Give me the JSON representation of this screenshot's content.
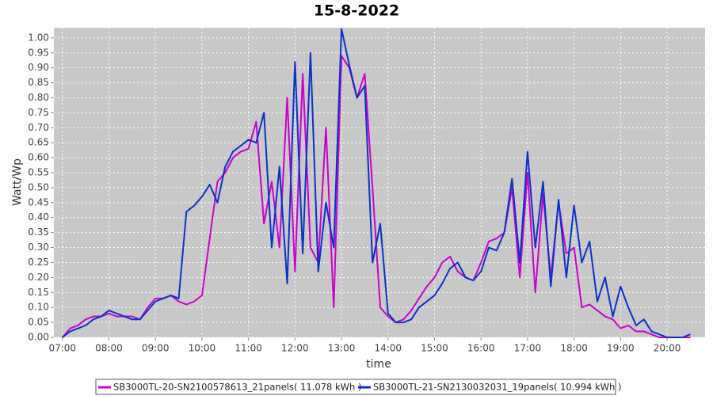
{
  "chart_data": {
    "type": "line",
    "title": "15-8-2022",
    "x_label": "time",
    "y_label": "Watt/Wp",
    "x": [
      420,
      430,
      440,
      450,
      460,
      470,
      480,
      490,
      500,
      510,
      520,
      530,
      540,
      550,
      560,
      570,
      580,
      590,
      600,
      610,
      620,
      630,
      640,
      650,
      660,
      670,
      680,
      690,
      700,
      710,
      720,
      730,
      740,
      750,
      760,
      770,
      780,
      790,
      800,
      810,
      820,
      830,
      840,
      850,
      860,
      870,
      880,
      890,
      900,
      910,
      920,
      930,
      940,
      950,
      960,
      970,
      980,
      990,
      1000,
      1010,
      1020,
      1030,
      1040,
      1050,
      1060,
      1070,
      1080,
      1090,
      1100,
      1110,
      1120,
      1130,
      1140,
      1150,
      1160,
      1170,
      1180,
      1190,
      1200,
      1210,
      1220,
      1230
    ],
    "series": [
      {
        "name": "SB3000TL-20-SN2100578613_21panels( 11.078 kWh )",
        "color": "#cc00cc",
        "values": [
          0.0,
          0.03,
          0.04,
          0.06,
          0.07,
          0.07,
          0.08,
          0.07,
          0.07,
          0.07,
          0.06,
          0.1,
          0.13,
          0.13,
          0.14,
          0.12,
          0.11,
          0.12,
          0.14,
          0.33,
          0.52,
          0.55,
          0.6,
          0.62,
          0.63,
          0.72,
          0.38,
          0.52,
          0.3,
          0.8,
          0.22,
          0.88,
          0.3,
          0.25,
          0.7,
          0.1,
          0.94,
          0.9,
          0.8,
          0.88,
          0.5,
          0.1,
          0.07,
          0.05,
          0.06,
          0.09,
          0.13,
          0.17,
          0.2,
          0.25,
          0.27,
          0.22,
          0.2,
          0.19,
          0.25,
          0.32,
          0.33,
          0.35,
          0.5,
          0.2,
          0.55,
          0.15,
          0.48,
          0.2,
          0.45,
          0.28,
          0.3,
          0.1,
          0.11,
          0.09,
          0.07,
          0.06,
          0.03,
          0.04,
          0.02,
          0.02,
          0.01,
          0.0,
          0.0,
          0.0,
          0.0,
          0.0
        ]
      },
      {
        "name": "SB3000TL-21-SN2130032031_19panels( 10.994 kWh )",
        "color": "#0a32c8",
        "values": [
          0.0,
          0.02,
          0.03,
          0.04,
          0.06,
          0.07,
          0.09,
          0.08,
          0.07,
          0.06,
          0.06,
          0.09,
          0.12,
          0.13,
          0.14,
          0.13,
          0.42,
          0.44,
          0.47,
          0.51,
          0.45,
          0.57,
          0.62,
          0.64,
          0.66,
          0.65,
          0.75,
          0.3,
          0.57,
          0.18,
          0.92,
          0.28,
          0.95,
          0.22,
          0.45,
          0.3,
          1.03,
          0.91,
          0.8,
          0.84,
          0.25,
          0.38,
          0.08,
          0.05,
          0.05,
          0.06,
          0.1,
          0.12,
          0.14,
          0.18,
          0.23,
          0.25,
          0.2,
          0.19,
          0.22,
          0.3,
          0.29,
          0.35,
          0.53,
          0.25,
          0.62,
          0.3,
          0.52,
          0.17,
          0.46,
          0.2,
          0.44,
          0.25,
          0.32,
          0.12,
          0.2,
          0.07,
          0.17,
          0.1,
          0.04,
          0.06,
          0.02,
          0.01,
          0.0,
          0.0,
          0.0,
          0.01
        ]
      }
    ],
    "xlim": [
      409,
      1249
    ],
    "xticks": [
      {
        "value": 420,
        "label": "07:00"
      },
      {
        "value": 480,
        "label": "08:00"
      },
      {
        "value": 540,
        "label": "09:00"
      },
      {
        "value": 600,
        "label": "10:00"
      },
      {
        "value": 660,
        "label": "11:00"
      },
      {
        "value": 720,
        "label": "12:00"
      },
      {
        "value": 780,
        "label": "13:00"
      },
      {
        "value": 840,
        "label": "14:00"
      },
      {
        "value": 900,
        "label": "15:00"
      },
      {
        "value": 960,
        "label": "16:00"
      },
      {
        "value": 1020,
        "label": "17:00"
      },
      {
        "value": 1080,
        "label": "18:00"
      },
      {
        "value": 1140,
        "label": "19:00"
      },
      {
        "value": 1200,
        "label": "20:00"
      }
    ],
    "ylim": [
      0,
      1.034
    ],
    "yticks": [
      {
        "value": 0,
        "label": "0.00"
      },
      {
        "value": 0.05,
        "label": "0.05"
      },
      {
        "value": 0.1,
        "label": "0.10"
      },
      {
        "value": 0.15,
        "label": "0.15"
      },
      {
        "value": 0.2,
        "label": "0.20"
      },
      {
        "value": 0.25,
        "label": "0.25"
      },
      {
        "value": 0.3,
        "label": "0.30"
      },
      {
        "value": 0.35,
        "label": "0.35"
      },
      {
        "value": 0.4,
        "label": "0.40"
      },
      {
        "value": 0.45,
        "label": "0.45"
      },
      {
        "value": 0.5,
        "label": "0.50"
      },
      {
        "value": 0.55,
        "label": "0.55"
      },
      {
        "value": 0.6,
        "label": "0.60"
      },
      {
        "value": 0.65,
        "label": "0.65"
      },
      {
        "value": 0.7,
        "label": "0.70"
      },
      {
        "value": 0.75,
        "label": "0.75"
      },
      {
        "value": 0.8,
        "label": "0.80"
      },
      {
        "value": 0.85,
        "label": "0.85"
      },
      {
        "value": 0.9,
        "label": "0.90"
      },
      {
        "value": 0.95,
        "label": "0.95"
      },
      {
        "value": 1,
        "label": "1.00"
      }
    ],
    "grid": true,
    "legend": "bottom"
  }
}
